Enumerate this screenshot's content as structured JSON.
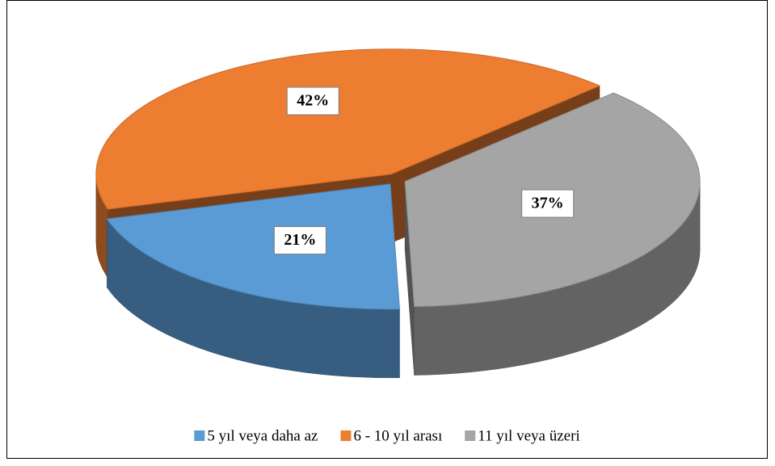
{
  "chart_data": {
    "type": "pie",
    "categories": [
      "5 yıl veya daha az",
      "6 - 10 yıl arası",
      "11 yıl veya üzeri"
    ],
    "values": [
      21,
      42,
      37
    ],
    "value_labels": [
      "21%",
      "42%",
      "37%"
    ],
    "colors": [
      "#5b9bd5",
      "#ed7d31",
      "#a5a5a5"
    ],
    "legend": "bottom"
  }
}
